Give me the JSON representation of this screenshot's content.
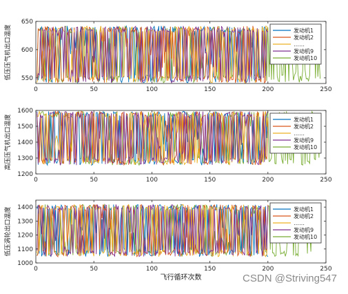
{
  "figure": {
    "xlabel": "飞行循环次数",
    "watermark": "CSDN @Striving547"
  },
  "chart_data": [
    {
      "type": "line",
      "ylabel": "低压压气机出口温度",
      "xlim": [
        0,
        250
      ],
      "ylim": [
        540,
        650
      ],
      "xticks": [
        0,
        50,
        100,
        150,
        200,
        250
      ],
      "yticks": [
        550,
        600,
        650
      ],
      "ytick_labels": [
        "550",
        "600",
        "650"
      ],
      "band": [
        541,
        642
      ],
      "series": [
        {
          "name": "发动机1",
          "color": "#0072bd",
          "length": 200
        },
        {
          "name": "发动机2",
          "color": "#d95319",
          "length": 200
        },
        {
          "name": "……",
          "color": "#edb120",
          "length": 200
        },
        {
          "name": "发动机9",
          "color": "#7e2f8e",
          "length": 200
        },
        {
          "name": "发动机10",
          "color": "#77ac30",
          "length": 245
        }
      ],
      "legend": "right"
    },
    {
      "type": "line",
      "ylabel": "高压压气机出口温度",
      "xlim": [
        0,
        250
      ],
      "ylim": [
        1200,
        1600
      ],
      "xticks": [
        0,
        50,
        100,
        150,
        200,
        250
      ],
      "yticks": [
        1200,
        1300,
        1400,
        1500,
        1600
      ],
      "ytick_labels": [
        "1200",
        "1300",
        "1400",
        "1500",
        "1600"
      ],
      "band": [
        1255,
        1595
      ],
      "series": [
        {
          "name": "发动机1",
          "color": "#0072bd",
          "length": 200
        },
        {
          "name": "发动机2",
          "color": "#d95319",
          "length": 200
        },
        {
          "name": "……",
          "color": "#edb120",
          "length": 200
        },
        {
          "name": "发动机9",
          "color": "#7e2f8e",
          "length": 200
        },
        {
          "name": "发动机10",
          "color": "#77ac30",
          "length": 245
        }
      ],
      "legend": "right"
    },
    {
      "type": "line",
      "ylabel": "低压涡轮出口温度",
      "xlim": [
        0,
        250
      ],
      "ylim": [
        1000,
        1450
      ],
      "xticks": [
        0,
        50,
        100,
        150,
        200,
        250
      ],
      "yticks": [
        1000,
        1100,
        1200,
        1300,
        1400
      ],
      "ytick_labels": [
        "1000",
        "1100",
        "1200",
        "1300",
        "1400"
      ],
      "band": [
        1045,
        1420
      ],
      "series": [
        {
          "name": "发动机1",
          "color": "#0072bd",
          "length": 200
        },
        {
          "name": "发动机2",
          "color": "#d95319",
          "length": 200
        },
        {
          "name": "……",
          "color": "#edb120",
          "length": 200
        },
        {
          "name": "发动机9",
          "color": "#7e2f8e",
          "length": 200
        },
        {
          "name": "发动机10",
          "color": "#77ac30",
          "length": 245
        }
      ],
      "legend": "right"
    }
  ]
}
